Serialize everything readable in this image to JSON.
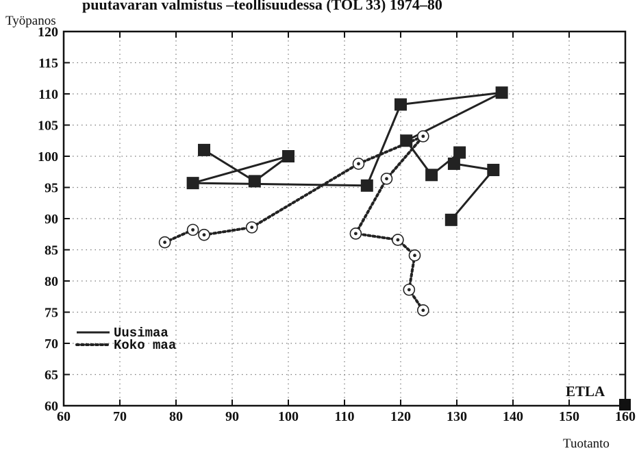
{
  "chart_data": {
    "type": "line",
    "title": "puutavaran valmistus –teollisuudessa (TOL 33) 1974–80",
    "xlabel": "Tuotanto",
    "ylabel": "Työpanos",
    "xlim": [
      60,
      160
    ],
    "ylim": [
      60,
      120
    ],
    "x_ticks": [
      "60",
      "70",
      "80",
      "90",
      "100",
      "110",
      "120",
      "130",
      "140",
      "150",
      "160"
    ],
    "y_ticks": [
      "60",
      "65",
      "70",
      "75",
      "80",
      "85",
      "90",
      "95",
      "100",
      "105",
      "110",
      "115",
      "120"
    ],
    "grid": true,
    "legend_position": "bottom-left",
    "series": [
      {
        "name": "Uusimaa",
        "line_style": "solid",
        "marker": "square",
        "color": "#222222",
        "points": [
          {
            "x": 85,
            "y": 101
          },
          {
            "x": 94,
            "y": 96
          },
          {
            "x": 100,
            "y": 100
          },
          {
            "x": 83,
            "y": 95.7
          },
          {
            "x": 114,
            "y": 95.3
          },
          {
            "x": 120,
            "y": 108.3
          },
          {
            "x": 138,
            "y": 110.2
          },
          {
            "x": 121,
            "y": 102.5
          },
          {
            "x": 125.5,
            "y": 97
          },
          {
            "x": 130.5,
            "y": 100.6
          },
          {
            "x": 129.5,
            "y": 98.8
          },
          {
            "x": 136.5,
            "y": 97.8
          },
          {
            "x": 129,
            "y": 89.8
          }
        ]
      },
      {
        "name": "Koko maa",
        "line_style": "dotted",
        "marker": "circle",
        "color": "#222222",
        "points": [
          {
            "x": 78,
            "y": 86.2
          },
          {
            "x": 83,
            "y": 88.2
          },
          {
            "x": 85,
            "y": 87.4
          },
          {
            "x": 93.5,
            "y": 88.6
          },
          {
            "x": 112.5,
            "y": 98.8
          },
          {
            "x": 124,
            "y": 103.2
          },
          {
            "x": 117.5,
            "y": 96.4
          },
          {
            "x": 112,
            "y": 87.6
          },
          {
            "x": 119.5,
            "y": 86.6
          },
          {
            "x": 122.5,
            "y": 84.1
          },
          {
            "x": 121.5,
            "y": 78.6
          },
          {
            "x": 124,
            "y": 75.3
          }
        ]
      }
    ],
    "annotations": [
      "ETLA"
    ]
  }
}
